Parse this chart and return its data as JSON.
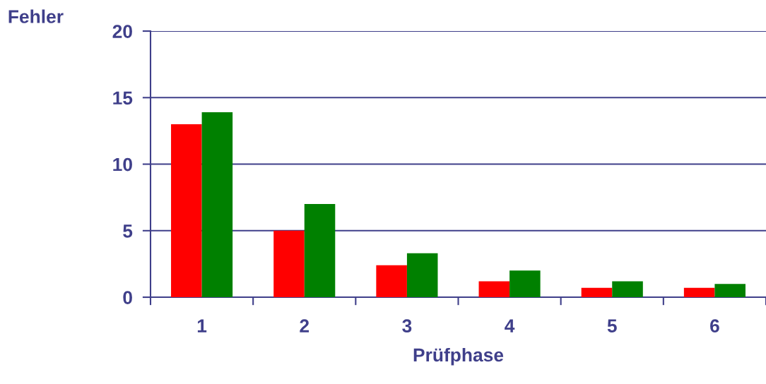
{
  "chart_data": {
    "type": "bar",
    "categories": [
      "1",
      "2",
      "3",
      "4",
      "5",
      "6"
    ],
    "series": [
      {
        "color": "#ff0000",
        "values": [
          13,
          5,
          2.4,
          1.2,
          0.7,
          0.7
        ]
      },
      {
        "color": "#008000",
        "values": [
          13.9,
          7,
          3.3,
          2,
          1.2,
          1
        ]
      }
    ],
    "xlabel": "Prüfphase",
    "ylabel": "Fehler",
    "ylim": [
      0,
      20
    ],
    "yticks": [
      0,
      5,
      10,
      15,
      20
    ],
    "grid": "y",
    "legend": false
  }
}
